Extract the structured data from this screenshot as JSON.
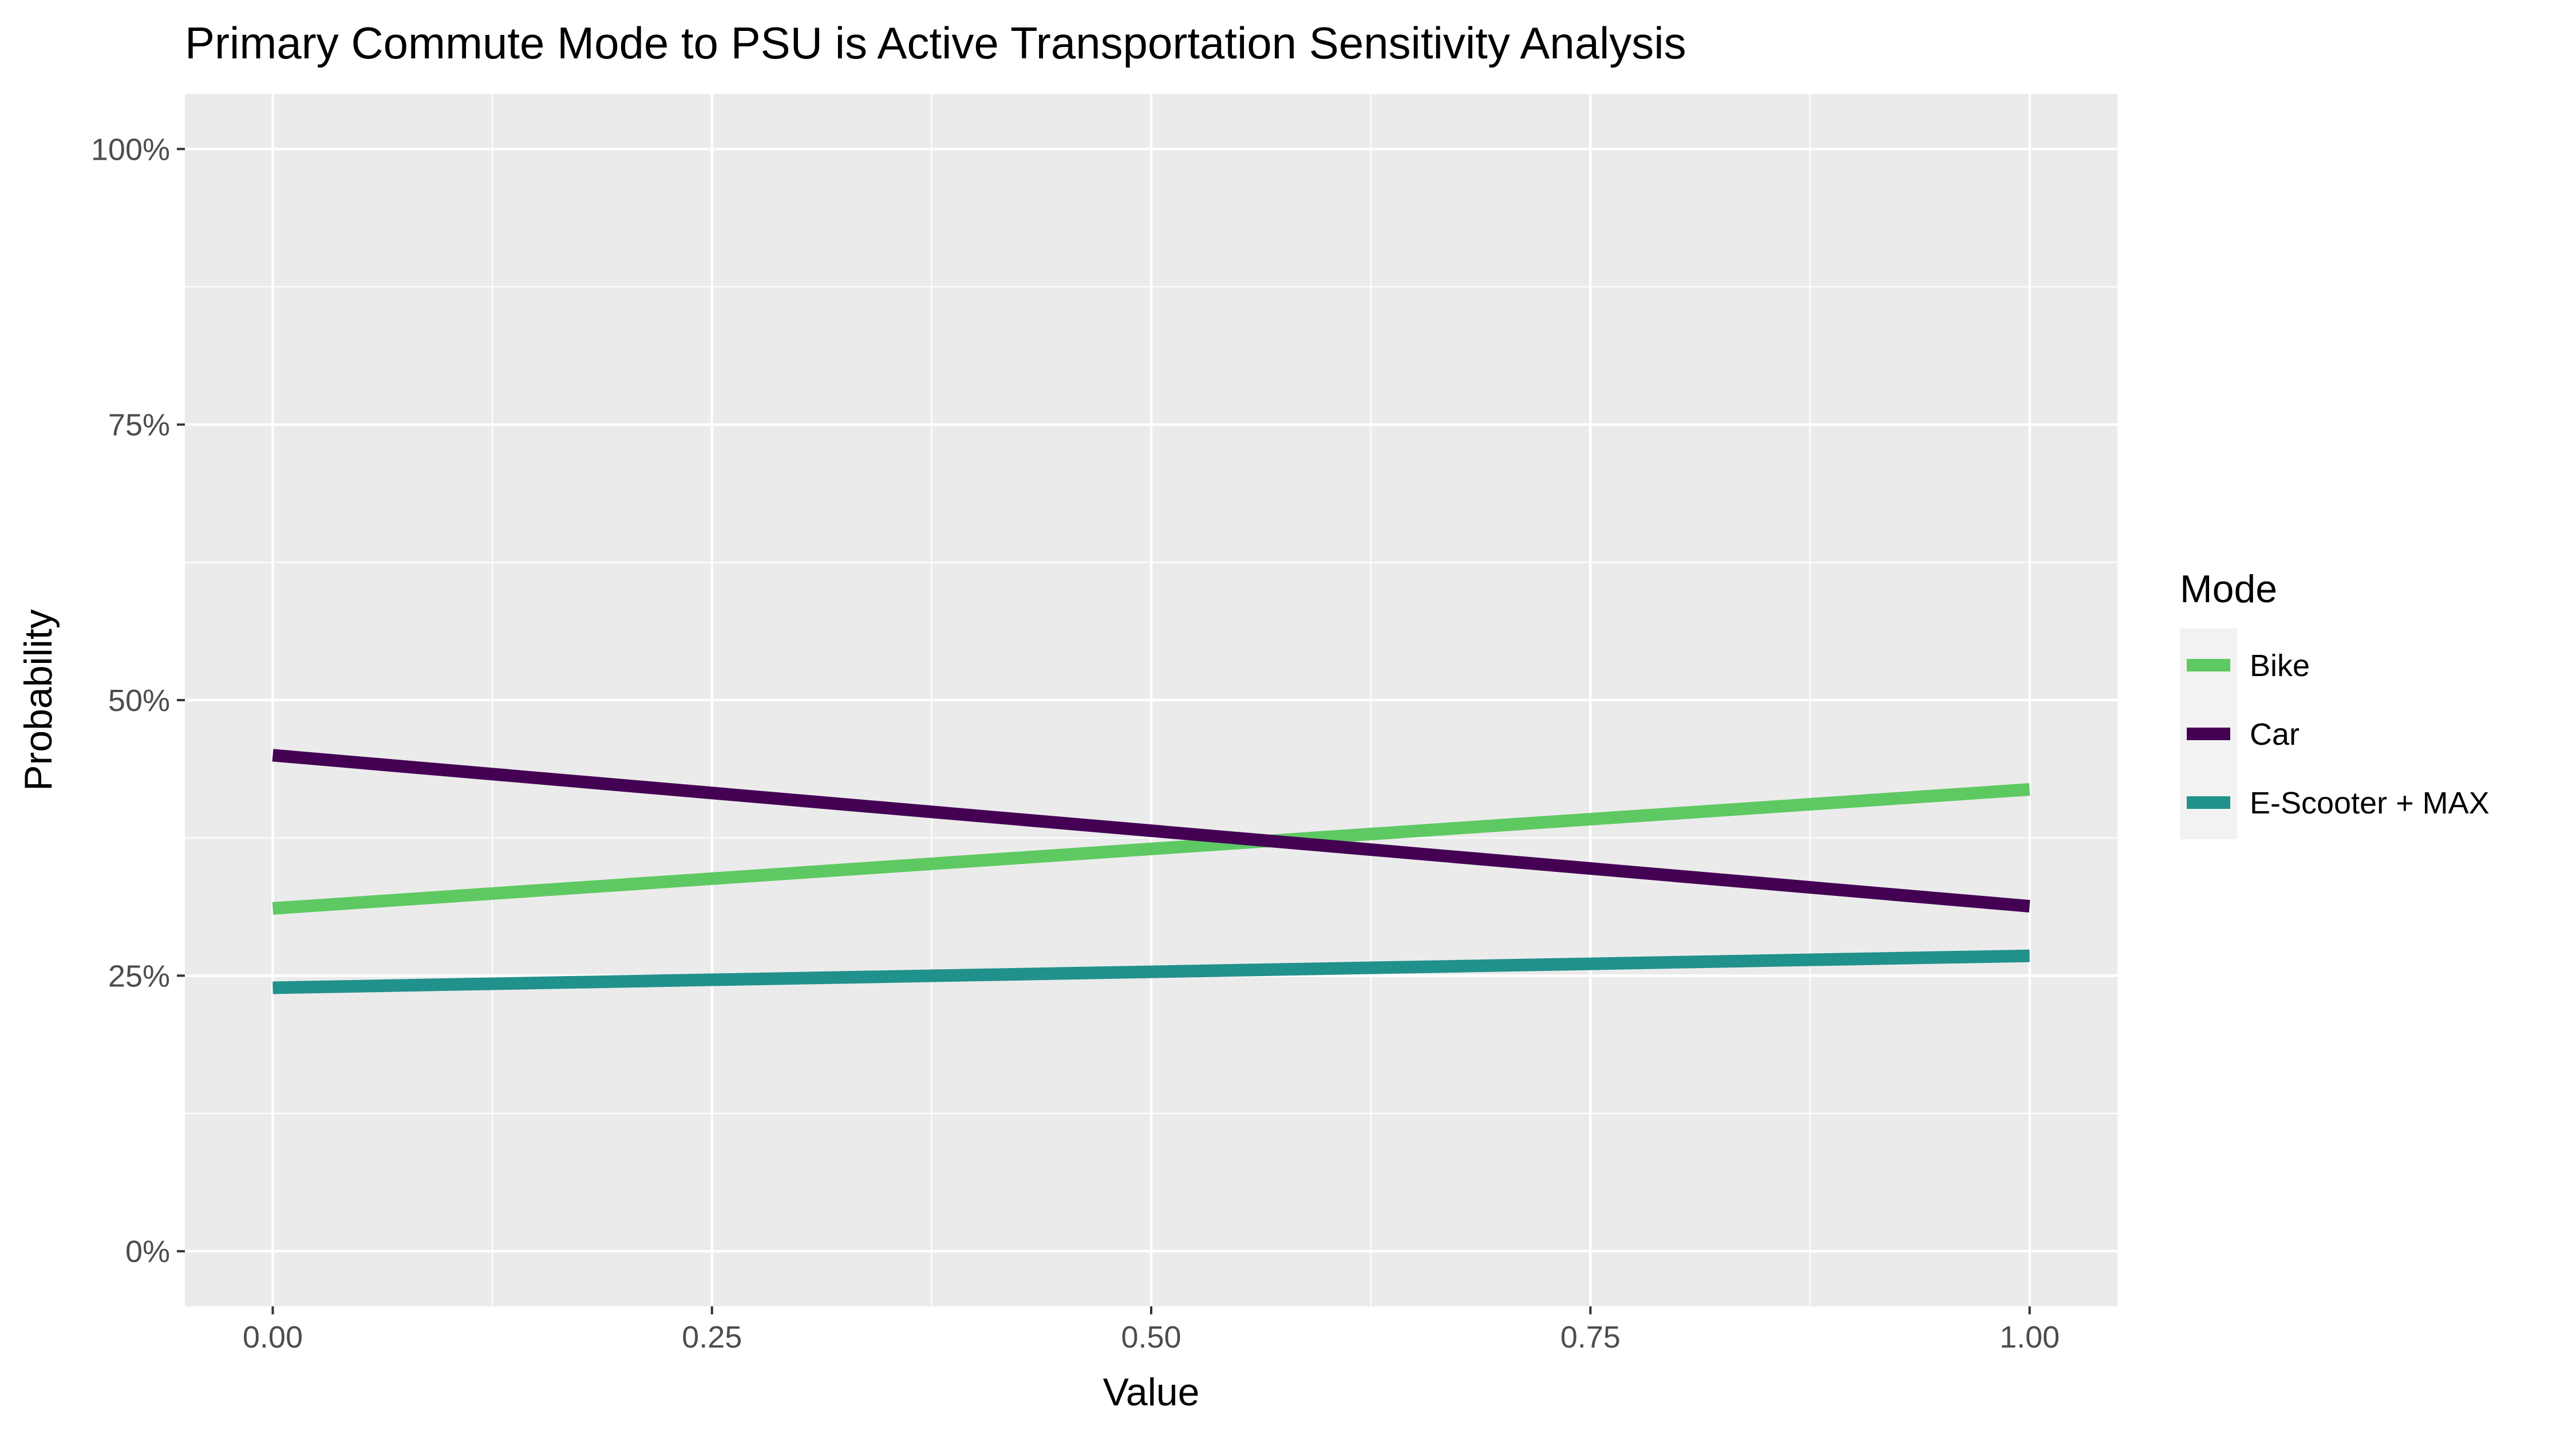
{
  "chart_data": {
    "type": "line",
    "title": "Primary Commute Mode to PSU is Active Transportation Sensitivity Analysis",
    "xlabel": "Value",
    "ylabel": "Probability",
    "xlim": [
      -0.05,
      1.05
    ],
    "ylim": [
      -0.05,
      1.05
    ],
    "x_ticks": [
      0.0,
      0.25,
      0.5,
      0.75,
      1.0
    ],
    "x_tick_labels": [
      "0.00",
      "0.25",
      "0.50",
      "0.75",
      "1.00"
    ],
    "y_ticks": [
      0.0,
      0.25,
      0.5,
      0.75,
      1.0
    ],
    "y_tick_labels": [
      "0%",
      "25%",
      "50%",
      "75%",
      "100%"
    ],
    "grid": true,
    "legend_title": "Mode",
    "legend_position": "right",
    "series": [
      {
        "name": "Bike",
        "color": "#5ec962",
        "x": [
          0.0,
          1.0
        ],
        "values": [
          0.311,
          0.419
        ]
      },
      {
        "name": "Car",
        "color": "#440154",
        "x": [
          0.0,
          1.0
        ],
        "values": [
          0.45,
          0.313
        ]
      },
      {
        "name": "E-Scooter + MAX",
        "color": "#21918c",
        "x": [
          0.0,
          1.0
        ],
        "values": [
          0.239,
          0.268
        ]
      }
    ]
  }
}
